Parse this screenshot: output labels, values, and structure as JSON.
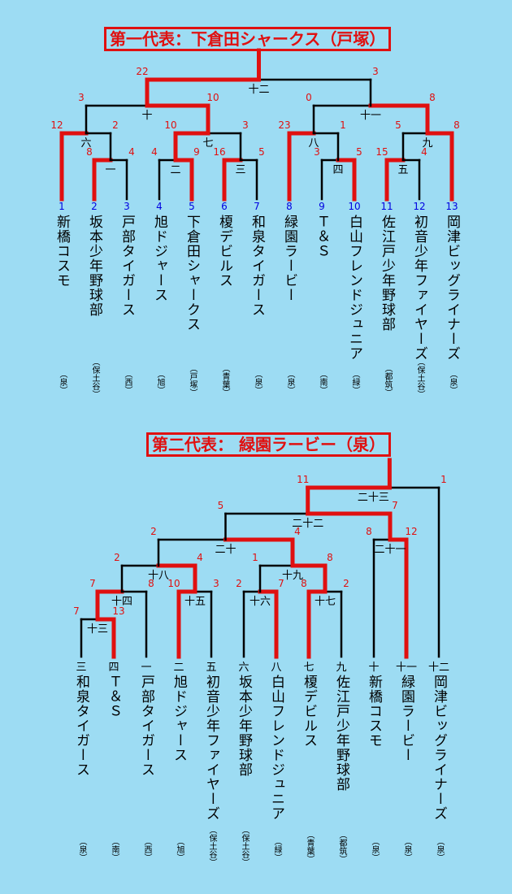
{
  "bracket1": {
    "title": "第一代表：下倉田シャークス（戸塚）",
    "teams": [
      {
        "seed": "1",
        "name": "新橋コスモ",
        "region": "（泉）"
      },
      {
        "seed": "2",
        "name": "坂本少年野球部",
        "region": "（保土谷）"
      },
      {
        "seed": "3",
        "name": "戸部タイガース",
        "region": "（西）"
      },
      {
        "seed": "4",
        "name": "旭ドジャース",
        "region": "（旭）"
      },
      {
        "seed": "5",
        "name": "下倉田シャークス",
        "region": "（戸塚）"
      },
      {
        "seed": "6",
        "name": "榎デビルス",
        "region": "（青葉）"
      },
      {
        "seed": "7",
        "name": "和泉タイガース",
        "region": "（泉）"
      },
      {
        "seed": "8",
        "name": "緑園ラービー",
        "region": "（泉）"
      },
      {
        "seed": "9",
        "name": "Ｔ＆Ｓ",
        "region": "（南）"
      },
      {
        "seed": "10",
        "name": "白山フレンドジュニア",
        "region": "（緑）"
      },
      {
        "seed": "11",
        "name": "佐江戸少年野球部",
        "region": "（都筑）"
      },
      {
        "seed": "12",
        "name": "初音少年ファイヤーズ",
        "region": "（保土谷）"
      },
      {
        "seed": "13",
        "name": "岡津ビッグライナーズ",
        "region": "（泉）"
      }
    ],
    "matches": [
      {
        "no": "一",
        "left_score": "8",
        "right_score": "4"
      },
      {
        "no": "二",
        "left_score": "4",
        "right_score": "9"
      },
      {
        "no": "三",
        "left_score": "16",
        "right_score": "5"
      },
      {
        "no": "四",
        "left_score": "3",
        "right_score": "5"
      },
      {
        "no": "五",
        "left_score": "15",
        "right_score": "4"
      },
      {
        "no": "六",
        "left_score": "12",
        "right_score": "2"
      },
      {
        "no": "七",
        "left_score": "10",
        "right_score": "3"
      },
      {
        "no": "八",
        "left_score": "23",
        "right_score": "1"
      },
      {
        "no": "九",
        "left_score": "5",
        "right_score": "8"
      },
      {
        "no": "十",
        "left_score": "3",
        "right_score": "10"
      },
      {
        "no": "十一",
        "left_score": "0",
        "right_score": "8"
      },
      {
        "no": "十二",
        "left_score": "22",
        "right_score": "3"
      }
    ]
  },
  "bracket2": {
    "title": "第二代表： 緑園ラービー（泉）",
    "teams": [
      {
        "seed": "三",
        "name": "和泉タイガース",
        "region": "（泉）"
      },
      {
        "seed": "四",
        "name": "Ｔ＆Ｓ",
        "region": "（南）"
      },
      {
        "seed": "一",
        "name": "戸部タイガース",
        "region": "（西）"
      },
      {
        "seed": "二",
        "name": "旭ドジャース",
        "region": "（旭）"
      },
      {
        "seed": "五",
        "name": "初音少年ファイヤーズ",
        "region": "（保土谷）"
      },
      {
        "seed": "六",
        "name": "坂本少年野球部",
        "region": "（保土谷）"
      },
      {
        "seed": "八",
        "name": "白山フレンドジュニア",
        "region": "（緑）"
      },
      {
        "seed": "七",
        "name": "榎デビルス",
        "region": "（青葉）"
      },
      {
        "seed": "九",
        "name": "佐江戸少年野球部",
        "region": "（都筑）"
      },
      {
        "seed": "十",
        "name": "新橋コスモ",
        "region": "（泉）"
      },
      {
        "seed": "十一",
        "name": "緑園ラービー",
        "region": "（泉）"
      },
      {
        "seed": "十二",
        "name": "岡津ビッグライナーズ",
        "region": "（泉）"
      }
    ],
    "matches": [
      {
        "no": "十三",
        "left_score": "7",
        "right_score": "13"
      },
      {
        "no": "十四",
        "left_score": "7",
        "right_score": "8"
      },
      {
        "no": "十五",
        "left_score": "10",
        "right_score": "3"
      },
      {
        "no": "十六",
        "left_score": "2",
        "right_score": "7"
      },
      {
        "no": "十七",
        "left_score": "8",
        "right_score": "2"
      },
      {
        "no": "十八",
        "left_score": "2",
        "right_score": "4"
      },
      {
        "no": "十九",
        "left_score": "1",
        "right_score": "8"
      },
      {
        "no": "二十",
        "left_score": "2",
        "right_score": "4"
      },
      {
        "no": "二十一",
        "left_score": "8",
        "right_score": "12"
      },
      {
        "no": "二十二",
        "left_score": "5",
        "right_score": "7"
      },
      {
        "no": "二十三",
        "left_score": "11",
        "right_score": "1"
      }
    ]
  },
  "colors": {
    "background": "#9ddcf3",
    "winner_line": "#e01010",
    "loser_line": "#000000",
    "score": "#e01010",
    "seed_number": "#0000e0"
  }
}
